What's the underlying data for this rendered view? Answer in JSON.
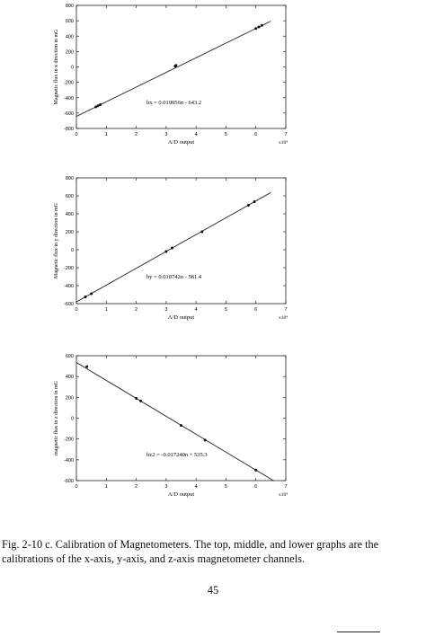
{
  "caption": "Fig. 2-10 c. Calibration of Magnetometers. The top, middle, and lower graphs are the calibrations of the x-axis, y-axis, and z-axis magnetometer channels.",
  "page_number": "45",
  "chart_data": [
    {
      "type": "scatter",
      "xlabel": "A/D output",
      "ylabel": "Magnetic flux in x direction in mG",
      "x_multiplier": "x10⁴",
      "xlim": [
        0,
        7
      ],
      "ylim": [
        -800,
        800
      ],
      "xticks": [
        0,
        1,
        2,
        3,
        4,
        5,
        6,
        7
      ],
      "yticks": [
        -800,
        -600,
        -400,
        -200,
        0,
        200,
        400,
        600,
        800
      ],
      "equation": "bx = 0.019056n - 643.2",
      "fit": {
        "slope": 190.56,
        "intercept": -643.2,
        "x_range": [
          0,
          6.5
        ]
      },
      "points": [
        [
          0.65,
          -520
        ],
        [
          0.72,
          -505
        ],
        [
          0.8,
          -490
        ],
        [
          3.3,
          10
        ],
        [
          3.33,
          20
        ],
        [
          6.0,
          500
        ],
        [
          6.1,
          520
        ],
        [
          6.2,
          540
        ]
      ]
    },
    {
      "type": "scatter",
      "xlabel": "A/D output",
      "ylabel": "Magnetic flux in y direction in mG",
      "x_multiplier": "x10⁴",
      "xlim": [
        0,
        7
      ],
      "ylim": [
        -600,
        800
      ],
      "xticks": [
        0,
        1,
        2,
        3,
        4,
        5,
        6,
        7
      ],
      "yticks": [
        -600,
        -400,
        -200,
        0,
        200,
        400,
        600,
        800
      ],
      "equation": "by = 0.018742n - 581.4",
      "fit": {
        "slope": 187.42,
        "intercept": -581.4,
        "x_range": [
          0,
          6.5
        ]
      },
      "points": [
        [
          0.3,
          -525
        ],
        [
          0.5,
          -490
        ],
        [
          3.0,
          -20
        ],
        [
          3.2,
          20
        ],
        [
          4.2,
          200
        ],
        [
          5.75,
          495
        ],
        [
          5.95,
          535
        ]
      ]
    },
    {
      "type": "scatter",
      "xlabel": "A/D output",
      "ylabel": "magnetic flux in z direction in mG",
      "x_multiplier": "x10⁴",
      "xlim": [
        0,
        7
      ],
      "ylim": [
        -600,
        600
      ],
      "xticks": [
        0,
        1,
        2,
        3,
        4,
        5,
        6,
        7
      ],
      "yticks": [
        -600,
        -400,
        -200,
        0,
        200,
        400,
        600
      ],
      "equation": "bz2 = -0.017240n + 535.3",
      "fit": {
        "slope": -172.4,
        "intercept": 535.3,
        "x_range": [
          0,
          6.6
        ]
      },
      "points": [
        [
          0.35,
          495
        ],
        [
          2.0,
          190
        ],
        [
          2.15,
          165
        ],
        [
          3.5,
          -70
        ],
        [
          4.3,
          -210
        ],
        [
          6.0,
          -500
        ]
      ]
    }
  ]
}
